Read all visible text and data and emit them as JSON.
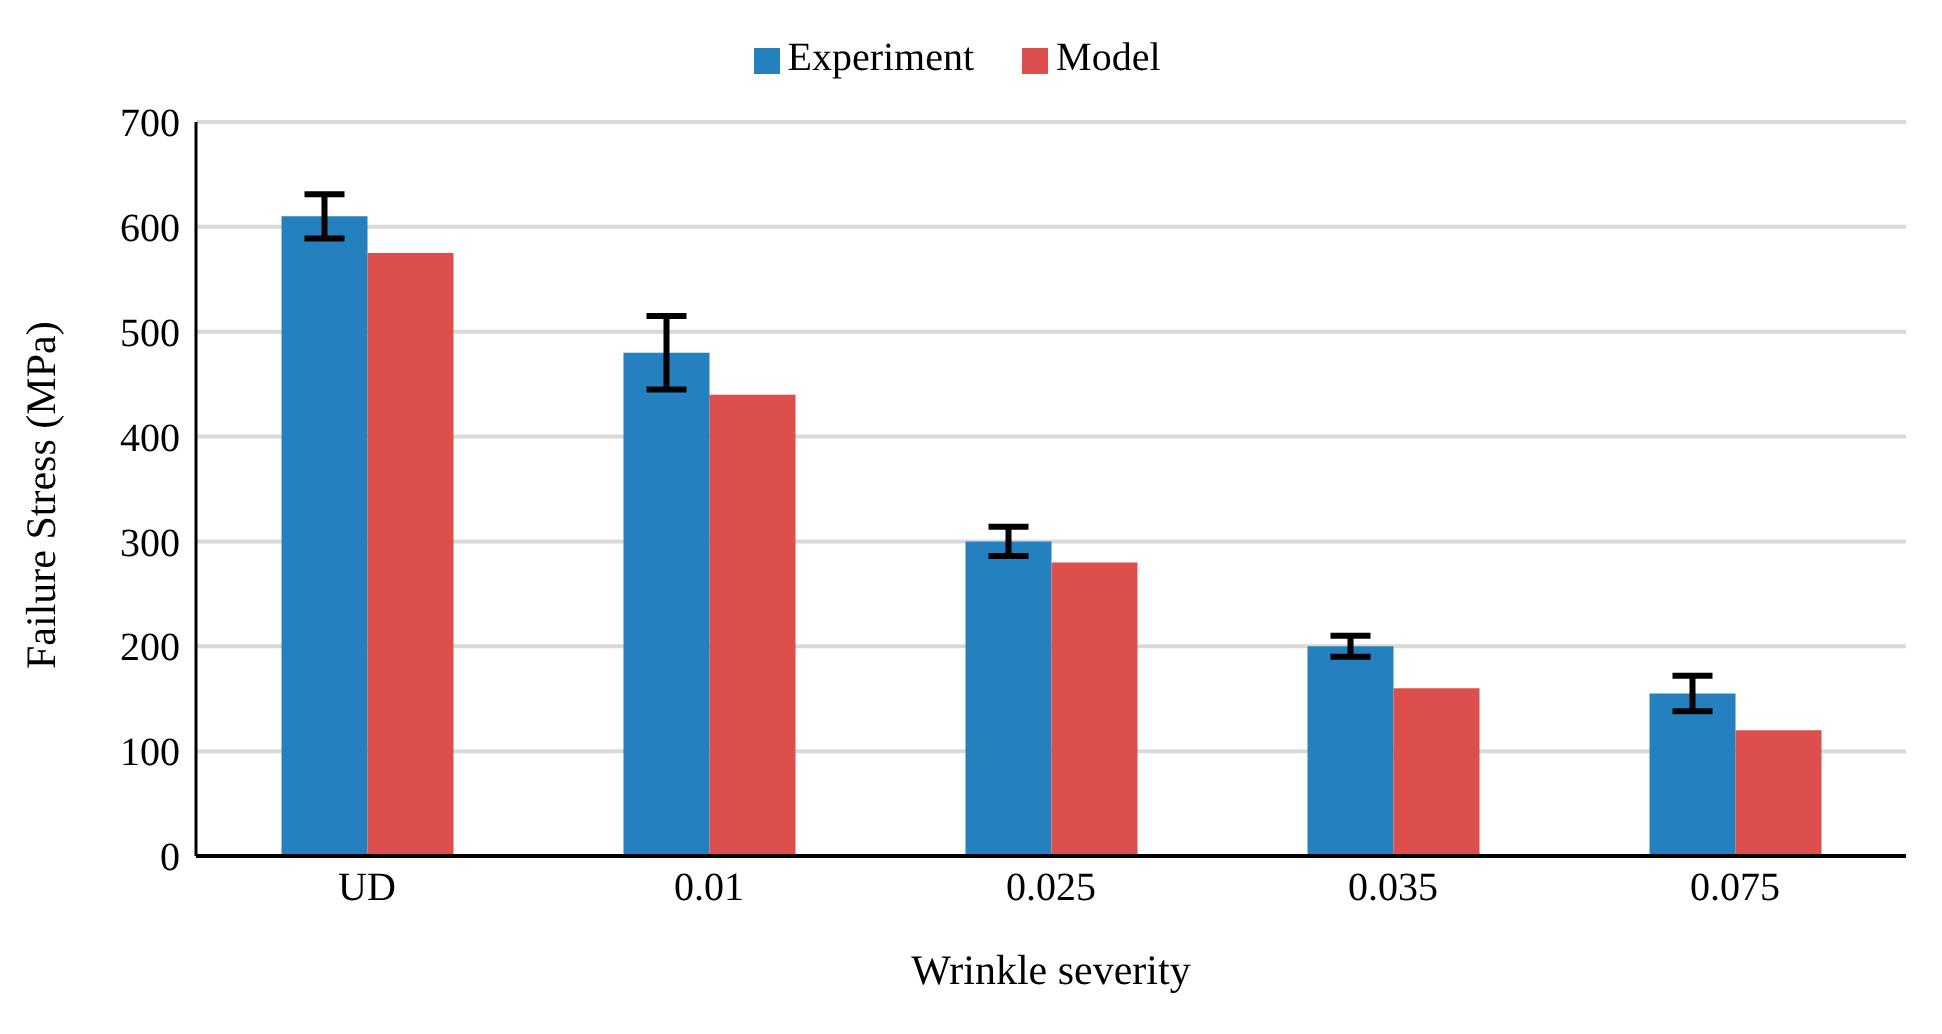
{
  "chart_data": {
    "type": "bar",
    "xlabel": "Wrinkle severity",
    "ylabel": "Failure Stress (MPa)",
    "categories": [
      "UD",
      "0.01",
      "0.025",
      "0.035",
      "0.075"
    ],
    "series": [
      {
        "name": "Experiment",
        "color": "#2580bf",
        "values": [
          610,
          480,
          300,
          200,
          155
        ],
        "errors": [
          21,
          35,
          14,
          10,
          17
        ]
      },
      {
        "name": "Model",
        "color": "#dc4f4d",
        "values": [
          575,
          440,
          280,
          160,
          120
        ]
      }
    ],
    "ylim": [
      0,
      700
    ],
    "yticks": [
      0,
      100,
      200,
      300,
      400,
      500,
      600,
      700
    ],
    "grid": "y",
    "legend": "top"
  }
}
